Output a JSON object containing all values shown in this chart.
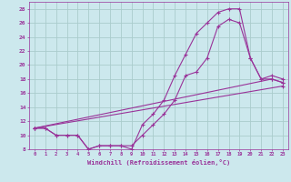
{
  "xlabel": "Windchill (Refroidissement éolien,°C)",
  "bg_color": "#cce8ed",
  "grid_color": "#aacccc",
  "line_color": "#993399",
  "xlim": [
    -0.5,
    23.5
  ],
  "ylim": [
    8,
    29
  ],
  "xticks": [
    0,
    1,
    2,
    3,
    4,
    5,
    6,
    7,
    8,
    9,
    10,
    11,
    12,
    13,
    14,
    15,
    16,
    17,
    18,
    19,
    20,
    21,
    22,
    23
  ],
  "yticks": [
    8,
    10,
    12,
    14,
    16,
    18,
    20,
    22,
    24,
    26,
    28
  ],
  "series": [
    {
      "x": [
        0,
        1,
        2,
        3,
        4,
        5,
        6,
        7,
        8,
        9,
        10,
        11,
        12,
        13,
        14,
        15,
        16,
        17,
        18,
        19,
        20,
        21,
        22,
        23
      ],
      "y": [
        11,
        11,
        10,
        10,
        10,
        8,
        8.5,
        8.5,
        8.5,
        8,
        11.5,
        13,
        15,
        18.5,
        21.5,
        24.5,
        26,
        27.5,
        28,
        28,
        21,
        18,
        18,
        17.5
      ]
    },
    {
      "x": [
        0,
        1,
        2,
        3,
        4,
        5,
        6,
        7,
        8,
        9,
        10,
        11,
        12,
        13,
        14,
        15,
        16,
        17,
        18,
        19,
        20,
        21,
        22,
        23
      ],
      "y": [
        11,
        11,
        10,
        10,
        10,
        8,
        8.5,
        8.5,
        8.5,
        8.5,
        10,
        11.5,
        13,
        15,
        18.5,
        19,
        21,
        25.5,
        26.5,
        26,
        21,
        18,
        18.5,
        18
      ]
    },
    {
      "x": [
        0,
        22,
        23
      ],
      "y": [
        11,
        18,
        17.5
      ]
    },
    {
      "x": [
        0,
        23
      ],
      "y": [
        11,
        17
      ]
    }
  ]
}
